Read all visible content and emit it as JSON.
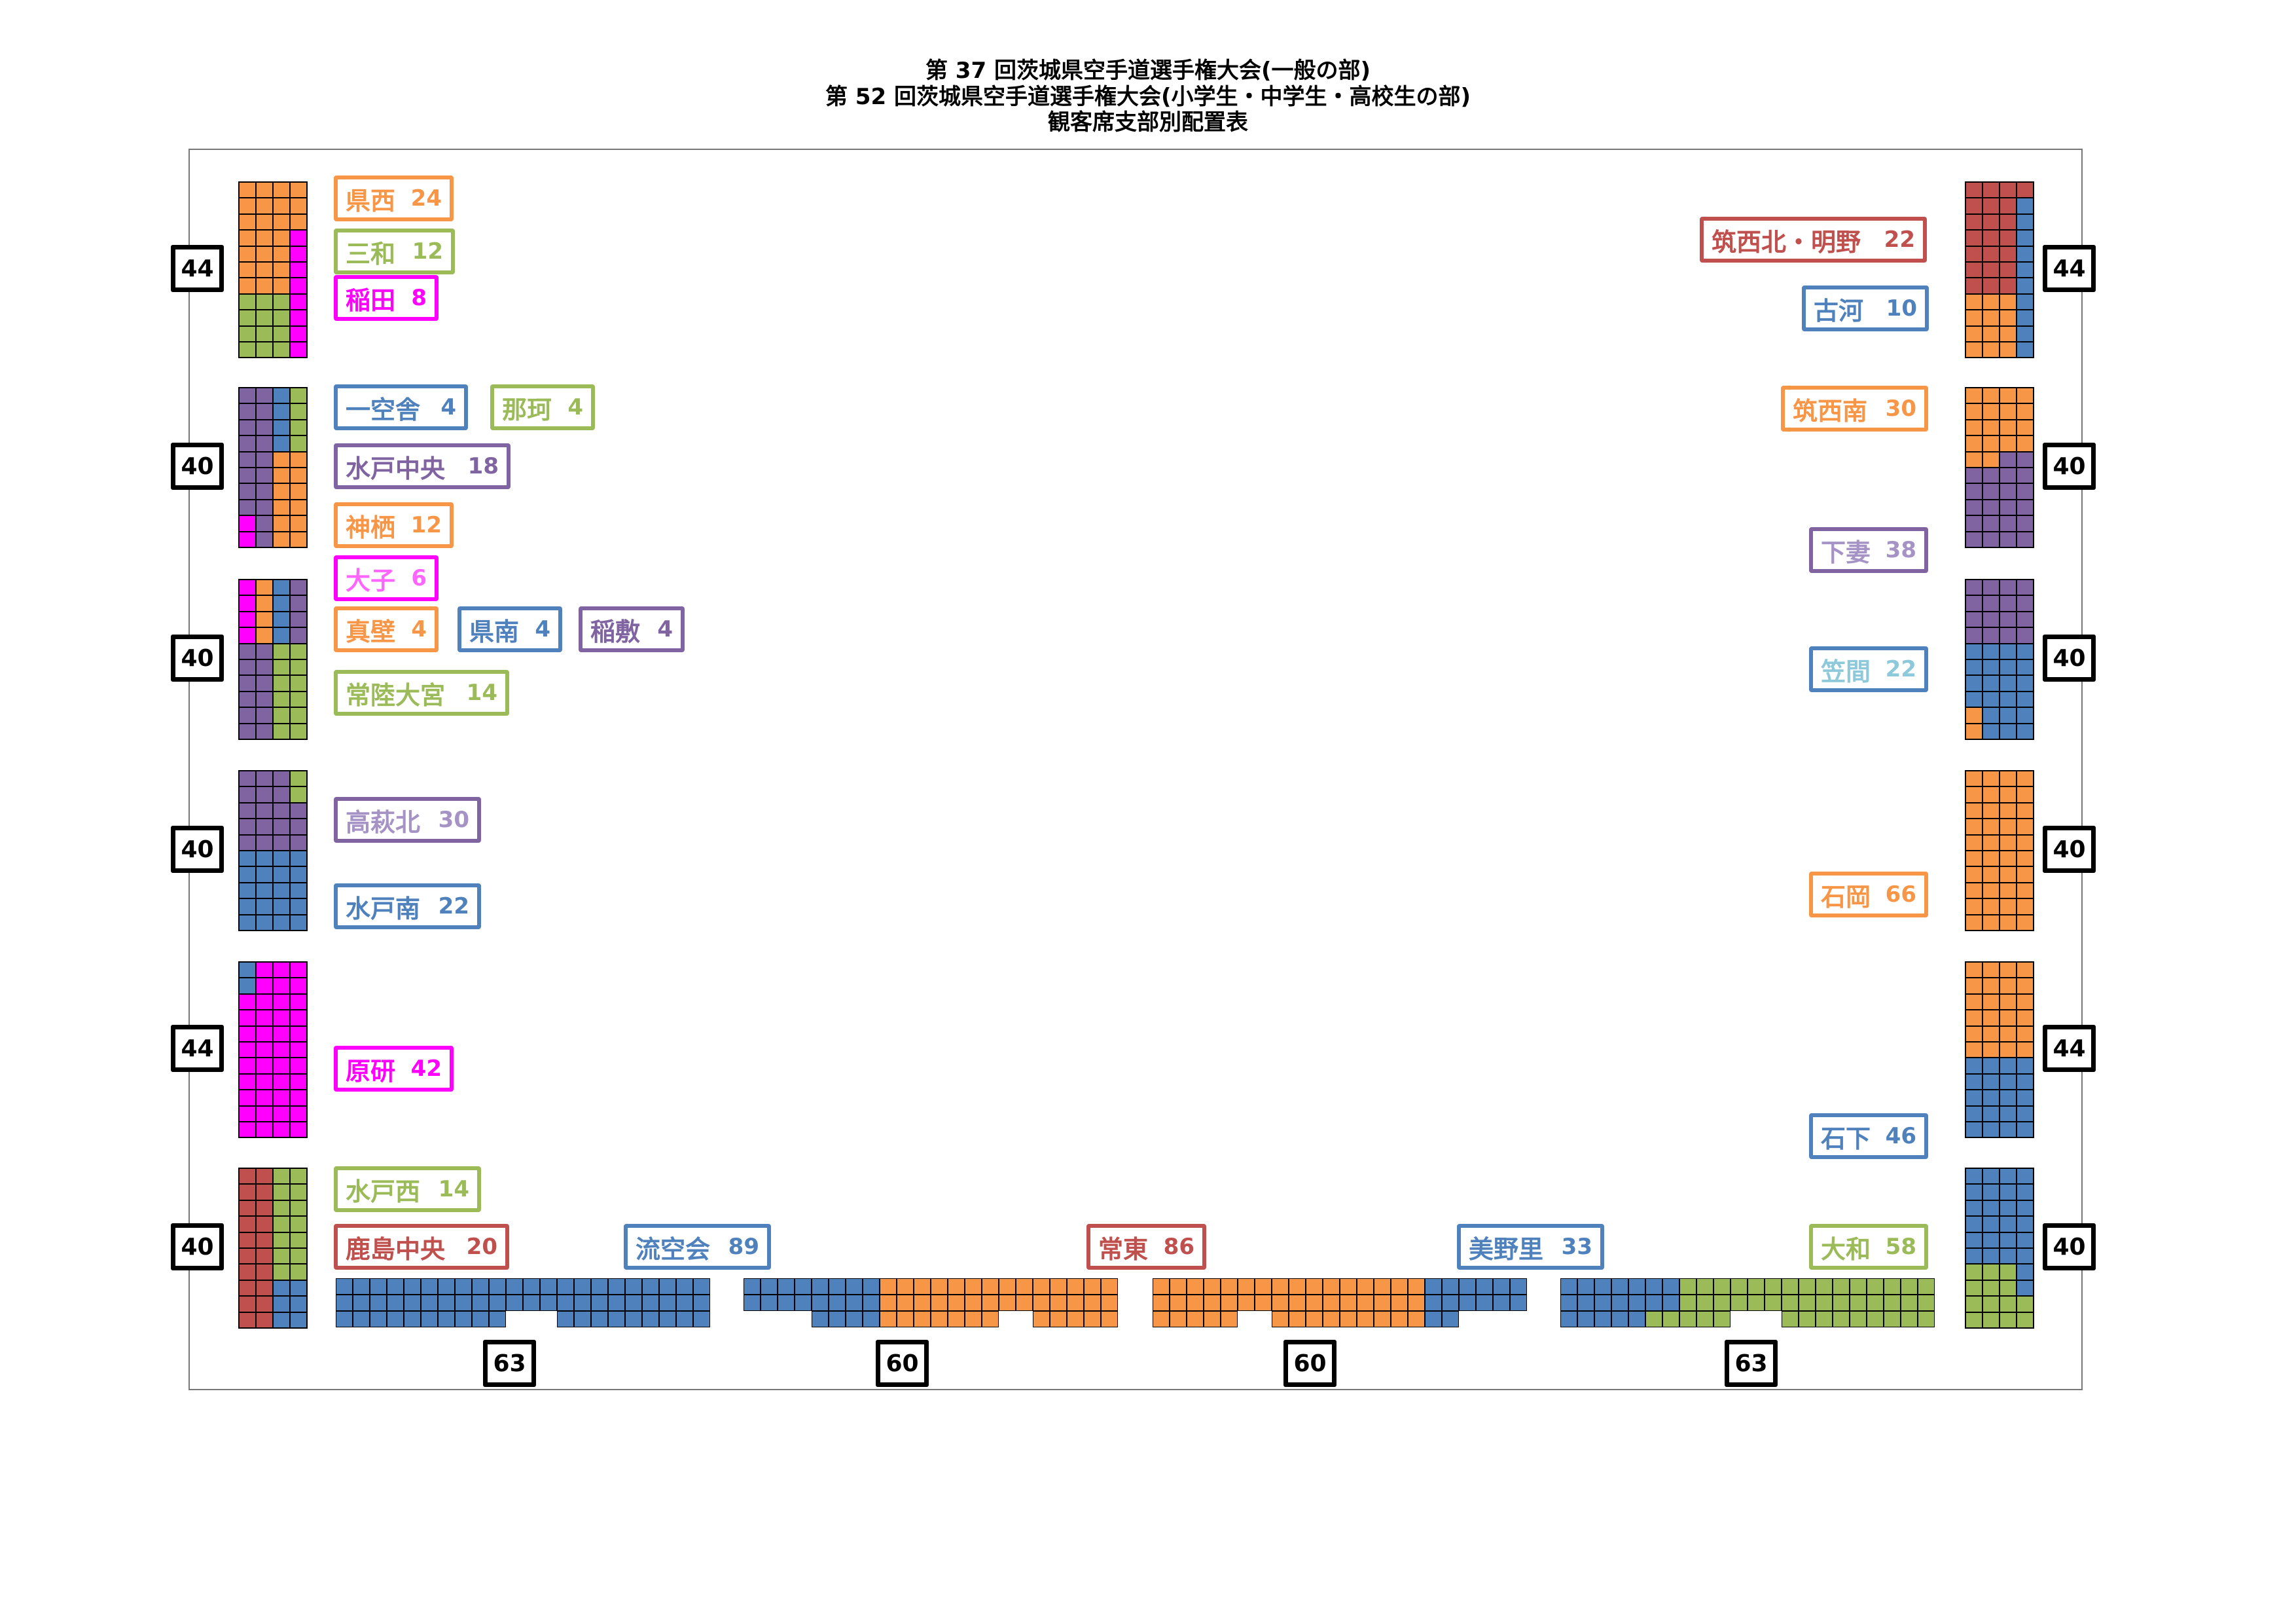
{
  "title": {
    "line1": "第 37 回茨城県空手道選手権大会(一般の部)",
    "line2": "第 52 回茨城県空手道選手権大会(小学生・中学生・高校生の部)",
    "line3": "観客席支部別配置表"
  },
  "colors": {
    "O": "#F79646",
    "G": "#9BBB59",
    "M": "#FF00FF",
    "B": "#4F81BD",
    "P": "#8064A2",
    "R": "#C0504D"
  },
  "sections": {
    "left": [
      {
        "count": "44",
        "grid": [
          "OOOO",
          "OOOO",
          "OOOO",
          "OOOM",
          "OOOM",
          "OOOM",
          "OOOM",
          "GGGM",
          "GGGM",
          "GGGM",
          "GGGM"
        ]
      },
      {
        "count": "40",
        "grid": [
          "PPBG",
          "PPBG",
          "PPBG",
          "PPBG",
          "PPOO",
          "PPOO",
          "PPOO",
          "PPOO",
          "MPOO",
          "MPOO"
        ]
      },
      {
        "count": "40",
        "grid": [
          "MOBP",
          "MOBP",
          "MOBP",
          "MOBP",
          "PPGG",
          "PPGG",
          "PPGG",
          "PPGG",
          "PPGG",
          "PPGG"
        ]
      },
      {
        "count": "40",
        "grid": [
          "PPPG",
          "PPPG",
          "PPPP",
          "PPPP",
          "PPPP",
          "BBBB",
          "BBBB",
          "BBBB",
          "BBBB",
          "BBBB"
        ]
      },
      {
        "count": "44",
        "grid": [
          "BMMM",
          "BMMM",
          "MMMM",
          "MMMM",
          "MMMM",
          "MMMM",
          "MMMM",
          "MMMM",
          "MMMM",
          "MMMM",
          "MMMM"
        ]
      },
      {
        "count": "40",
        "grid": [
          "RRGG",
          "RRGG",
          "RRGG",
          "RRGG",
          "RRGG",
          "RRGG",
          "RRGG",
          "RRBB",
          "RRBB",
          "RRBB"
        ]
      }
    ],
    "right": [
      {
        "count": "44",
        "grid": [
          "RRRR",
          "RRRB",
          "RRRB",
          "RRRB",
          "RRRB",
          "RRRB",
          "RRRB",
          "OOOB",
          "OOOB",
          "OOOB",
          "OOOB"
        ]
      },
      {
        "count": "40",
        "grid": [
          "OOOO",
          "OOOO",
          "OOOO",
          "OOOO",
          "OOPP",
          "PPPP",
          "PPPP",
          "PPPP",
          "PPPP",
          "PPPP"
        ]
      },
      {
        "count": "40",
        "grid": [
          "PPPP",
          "PPPP",
          "PPPP",
          "PPPP",
          "BBBB",
          "BBBB",
          "BBBB",
          "BBBB",
          "OBBB",
          "OBBB"
        ]
      },
      {
        "count": "40",
        "grid": [
          "OOOO",
          "OOOO",
          "OOOO",
          "OOOO",
          "OOOO",
          "OOOO",
          "OOOO",
          "OOOO",
          "OOOO",
          "OOOO"
        ]
      },
      {
        "count": "44",
        "grid": [
          "OOOO",
          "OOOO",
          "OOOO",
          "OOOO",
          "OOOO",
          "OOOO",
          "BBBB",
          "BBBB",
          "BBBB",
          "BBBB",
          "BBBB"
        ]
      },
      {
        "count": "40",
        "grid": [
          "BBBB",
          "BBBB",
          "BBBB",
          "BBBB",
          "BBBB",
          "BBBB",
          "GGGB",
          "GGGB",
          "GGGG",
          "GGGG"
        ]
      }
    ],
    "bottom": [
      {
        "count": "63",
        "grid": [
          "BBBBBBBBBBBBBBBBBBBBBB",
          "BBBBBBBBBBBBBBBBBBBBBB",
          "BBBBBBBBBB...BBBBBBBBB"
        ]
      },
      {
        "count": "60",
        "grid": [
          "BBBBBBBBOOOOOOOOOOOOOO",
          "BBBBBBBBOOOOOOOOOOOOOO",
          "....BBBBOOOOOOO..OOOOO"
        ]
      },
      {
        "count": "60",
        "grid": [
          "OOOOOOOOOOOOOOOOBBBBBB",
          "OOOOOOOOOOOOOOOOBBBBBB",
          "OOOOO..OOOOOOOOOBB...."
        ]
      },
      {
        "count": "63",
        "grid": [
          "BBBBBBBGGGGGGGGGGGGGGG",
          "BBBBBBBGGGGGGGGGGGGGGG",
          "BBBBBGGGGG...GGGGGGGGG"
        ]
      }
    ]
  },
  "labels": [
    {
      "name": "県西",
      "count": "24",
      "border": "#F79646",
      "text": "#F79646"
    },
    {
      "name": "三和",
      "count": "12",
      "border": "#9BBB59",
      "text": "#9BBB59"
    },
    {
      "name": "稲田",
      "count": "8",
      "border": "#FF00FF",
      "text": "#FF00FF"
    },
    {
      "name": "一空舎",
      "count": "4",
      "border": "#4F81BD",
      "text": "#4F81BD"
    },
    {
      "name": "那珂",
      "count": "4",
      "border": "#9BBB59",
      "text": "#9BBB59"
    },
    {
      "name": "水戸中央",
      "count": "18",
      "border": "#8064A2",
      "text": "#8064A2"
    },
    {
      "name": "神栖",
      "count": "12",
      "border": "#F79646",
      "text": "#F79646"
    },
    {
      "name": "大子",
      "count": "6",
      "border": "#FF00FF",
      "text": "#FF66FF"
    },
    {
      "name": "真壁",
      "count": "4",
      "border": "#F79646",
      "text": "#F79646"
    },
    {
      "name": "県南",
      "count": "4",
      "border": "#4F81BD",
      "text": "#4F81BD"
    },
    {
      "name": "稲敷",
      "count": "4",
      "border": "#8064A2",
      "text": "#8064A2"
    },
    {
      "name": "常陸大宮",
      "count": "14",
      "border": "#9BBB59",
      "text": "#9BBB59"
    },
    {
      "name": "高萩北",
      "count": "30",
      "border": "#8064A2",
      "text": "#A593C5"
    },
    {
      "name": "水戸南",
      "count": "22",
      "border": "#4F81BD",
      "text": "#4F81BD"
    },
    {
      "name": "原研",
      "count": "42",
      "border": "#FF00FF",
      "text": "#FF00FF"
    },
    {
      "name": "水戸西",
      "count": "14",
      "border": "#9BBB59",
      "text": "#9BBB59"
    },
    {
      "name": "鹿島中央",
      "count": "20",
      "border": "#C0504D",
      "text": "#C0504D"
    },
    {
      "name": "流空会",
      "count": "89",
      "border": "#4F81BD",
      "text": "#4F81BD"
    },
    {
      "name": "常東",
      "count": "86",
      "border": "#C0504D",
      "text": "#C0504D"
    },
    {
      "name": "美野里",
      "count": "33",
      "border": "#4F81BD",
      "text": "#4F81BD"
    },
    {
      "name": "大和",
      "count": "58",
      "border": "#9BBB59",
      "text": "#9BBB59"
    },
    {
      "name": "筑西北・明野",
      "count": "22",
      "border": "#C0504D",
      "text": "#C0504D"
    },
    {
      "name": "古河",
      "count": "10",
      "border": "#4F81BD",
      "text": "#4F81BD"
    },
    {
      "name": "筑西南",
      "count": "30",
      "border": "#F79646",
      "text": "#F79646"
    },
    {
      "name": "下妻",
      "count": "38",
      "border": "#8064A2",
      "text": "#A593C5"
    },
    {
      "name": "笠間",
      "count": "22",
      "border": "#4F81BD",
      "text": "#8DC9DA"
    },
    {
      "name": "石岡",
      "count": "66",
      "border": "#F79646",
      "text": "#F79646"
    },
    {
      "name": "石下",
      "count": "46",
      "border": "#4F81BD",
      "text": "#4F81BD"
    }
  ]
}
